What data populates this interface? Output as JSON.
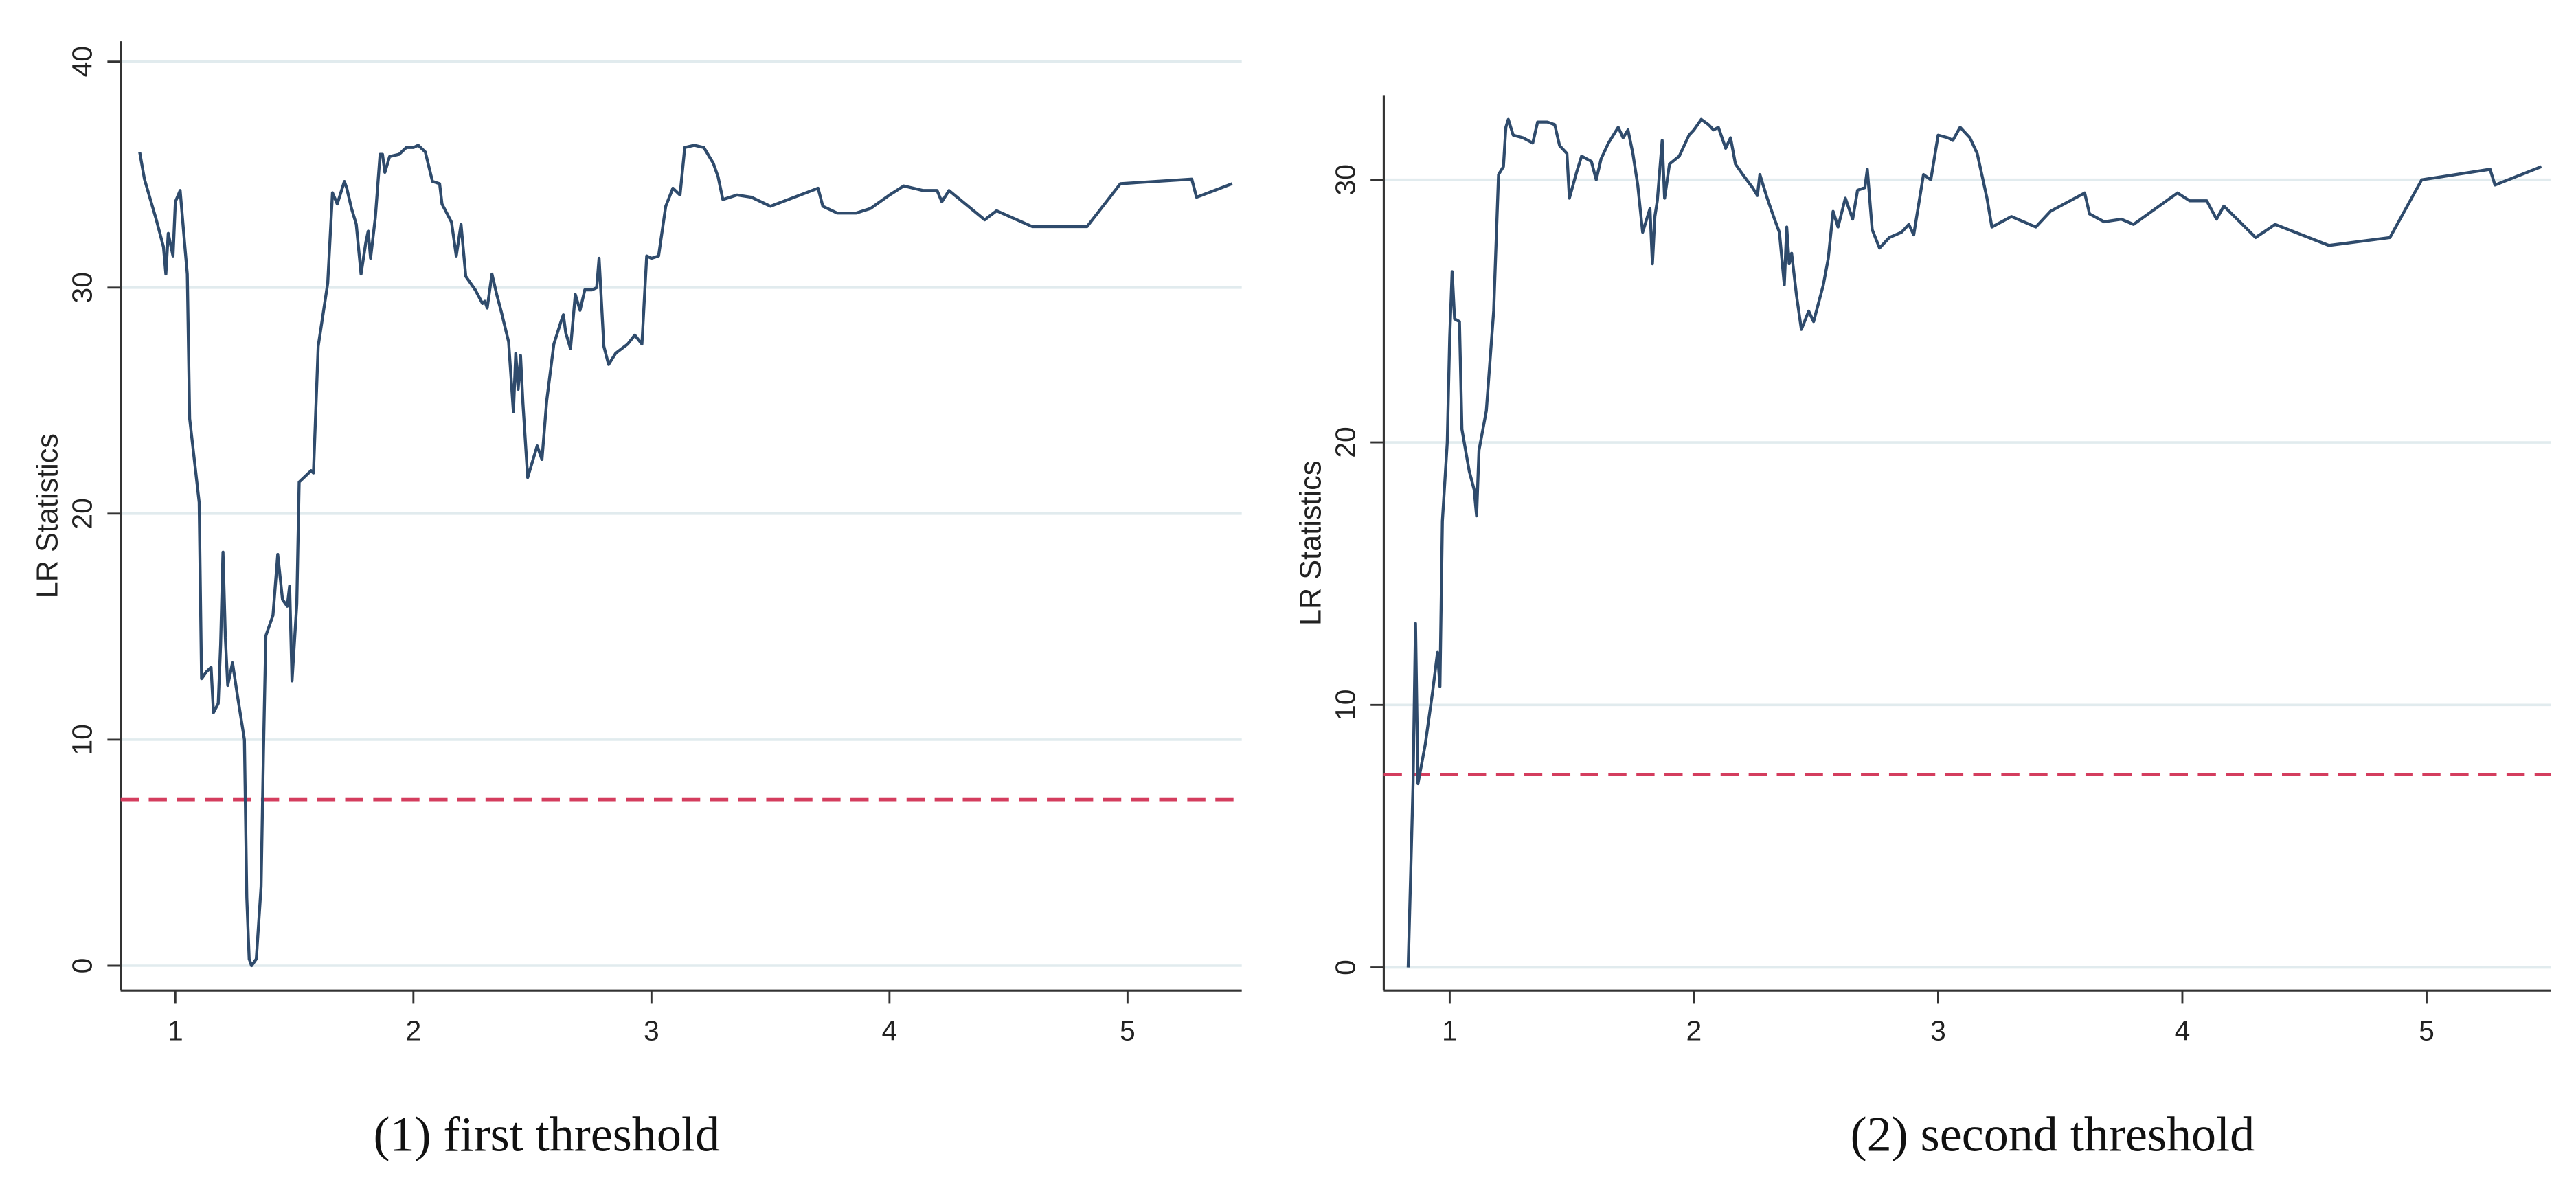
{
  "chart_data": [
    {
      "type": "line",
      "caption": "(1) first threshold",
      "ylabel": "LR Statistics",
      "color": "#2f4b6c",
      "xlim": [
        0.77,
        5.48
      ],
      "ylim": [
        -1.1,
        40.9
      ],
      "xticks": [
        1,
        2,
        3,
        4,
        5
      ],
      "yticks": [
        0,
        10,
        20,
        30,
        40
      ],
      "grid": true,
      "reference_line": {
        "value": 7.35,
        "color": "#d43d5e"
      },
      "x": [
        0.85,
        0.87,
        0.92,
        0.95,
        0.96,
        0.97,
        0.99,
        1.0,
        1.02,
        1.04,
        1.05,
        1.06,
        1.1,
        1.11,
        1.13,
        1.15,
        1.16,
        1.18,
        1.19,
        1.2,
        1.21,
        1.22,
        1.24,
        1.26,
        1.29,
        1.3,
        1.31,
        1.32,
        1.34,
        1.36,
        1.37,
        1.38,
        1.41,
        1.43,
        1.45,
        1.47,
        1.48,
        1.49,
        1.51,
        1.52,
        1.55,
        1.57,
        1.58,
        1.6,
        1.64,
        1.66,
        1.68,
        1.71,
        1.72,
        1.74,
        1.76,
        1.78,
        1.8,
        1.81,
        1.82,
        1.84,
        1.86,
        1.87,
        1.88,
        1.9,
        1.94,
        1.97,
        2.0,
        2.02,
        2.05,
        2.08,
        2.11,
        2.12,
        2.16,
        2.18,
        2.2,
        2.22,
        2.26,
        2.29,
        2.3,
        2.31,
        2.33,
        2.35,
        2.37,
        2.4,
        2.42,
        2.43,
        2.44,
        2.45,
        2.46,
        2.48,
        2.5,
        2.52,
        2.54,
        2.56,
        2.59,
        2.62,
        2.63,
        2.64,
        2.66,
        2.68,
        2.7,
        2.72,
        2.75,
        2.77,
        2.78,
        2.8,
        2.82,
        2.85,
        2.9,
        2.93,
        2.96,
        2.98,
        3.0,
        3.03,
        3.06,
        3.09,
        3.12,
        3.14,
        3.18,
        3.22,
        3.26,
        3.28,
        3.3,
        3.36,
        3.42,
        3.5,
        3.7,
        3.72,
        3.78,
        3.86,
        3.92,
        4.0,
        4.06,
        4.14,
        4.2,
        4.22,
        4.25,
        4.4,
        4.45,
        4.6,
        4.83,
        4.97,
        5.27,
        5.29,
        5.44
      ],
      "values": [
        36.0,
        34.8,
        33.0,
        31.8,
        30.6,
        32.4,
        31.4,
        33.8,
        34.3,
        31.8,
        30.6,
        24.2,
        20.5,
        12.7,
        13.0,
        13.2,
        11.2,
        11.6,
        14.2,
        18.3,
        14.5,
        12.4,
        13.4,
        12.0,
        10.0,
        3.0,
        0.3,
        0.0,
        0.3,
        3.5,
        9.5,
        14.6,
        15.5,
        18.2,
        16.2,
        15.9,
        16.8,
        12.6,
        16.0,
        21.4,
        21.7,
        21.9,
        21.8,
        27.4,
        30.2,
        34.2,
        33.7,
        34.7,
        34.4,
        33.5,
        32.8,
        30.6,
        32.0,
        32.5,
        31.3,
        33.1,
        35.9,
        35.9,
        35.1,
        35.8,
        35.9,
        36.2,
        36.2,
        36.3,
        36.0,
        34.7,
        34.6,
        33.7,
        32.9,
        31.4,
        32.8,
        30.5,
        29.9,
        29.3,
        29.4,
        29.1,
        30.6,
        29.7,
        28.9,
        27.6,
        24.5,
        27.1,
        25.5,
        27.0,
        24.9,
        21.6,
        22.3,
        23.0,
        22.4,
        25.0,
        27.5,
        28.5,
        28.8,
        28.0,
        27.3,
        29.7,
        29.0,
        29.9,
        29.9,
        30.0,
        31.3,
        27.4,
        26.6,
        27.1,
        27.5,
        27.9,
        27.5,
        31.4,
        31.3,
        31.4,
        33.6,
        34.4,
        34.1,
        36.2,
        36.3,
        36.2,
        35.5,
        34.9,
        33.9,
        34.1,
        34.0,
        33.6,
        34.4,
        33.6,
        33.3,
        33.3,
        33.5,
        34.1,
        34.5,
        34.3,
        34.3,
        33.8,
        34.3,
        33.0,
        33.4,
        32.7,
        32.7,
        34.6,
        34.8,
        34.0,
        34.6
      ]
    },
    {
      "type": "line",
      "caption": "(2) second threshold",
      "ylabel": "LR Statistics",
      "color": "#2f4b6c",
      "xlim": [
        0.73,
        5.51
      ],
      "ylim": [
        -0.88,
        33.2
      ],
      "xticks": [
        1,
        2,
        3,
        4,
        5
      ],
      "yticks": [
        0,
        10,
        20,
        30
      ],
      "grid": true,
      "reference_line": {
        "value": 7.35,
        "color": "#d43d5e"
      },
      "x": [
        0.83,
        0.85,
        0.86,
        0.87,
        0.9,
        0.93,
        0.95,
        0.96,
        0.97,
        0.99,
        1.0,
        1.01,
        1.02,
        1.04,
        1.05,
        1.08,
        1.1,
        1.11,
        1.12,
        1.15,
        1.18,
        1.2,
        1.22,
        1.23,
        1.24,
        1.26,
        1.3,
        1.34,
        1.36,
        1.4,
        1.43,
        1.45,
        1.48,
        1.49,
        1.52,
        1.54,
        1.58,
        1.6,
        1.62,
        1.65,
        1.69,
        1.71,
        1.73,
        1.75,
        1.77,
        1.79,
        1.82,
        1.83,
        1.84,
        1.85,
        1.87,
        1.88,
        1.9,
        1.94,
        1.98,
        2.0,
        2.03,
        2.06,
        2.08,
        2.1,
        2.13,
        2.15,
        2.17,
        2.2,
        2.24,
        2.26,
        2.27,
        2.3,
        2.33,
        2.35,
        2.37,
        2.38,
        2.39,
        2.4,
        2.42,
        2.44,
        2.47,
        2.49,
        2.53,
        2.55,
        2.57,
        2.59,
        2.62,
        2.65,
        2.67,
        2.7,
        2.71,
        2.73,
        2.76,
        2.8,
        2.85,
        2.88,
        2.9,
        2.94,
        2.97,
        3.0,
        3.04,
        3.06,
        3.09,
        3.13,
        3.16,
        3.2,
        3.22,
        3.3,
        3.4,
        3.46,
        3.6,
        3.62,
        3.68,
        3.75,
        3.8,
        3.98,
        4.03,
        4.1,
        4.14,
        4.17,
        4.3,
        4.38,
        4.6,
        4.85,
        4.98,
        5.26,
        5.28,
        5.47
      ],
      "values": [
        0.0,
        7.0,
        13.1,
        7.0,
        8.5,
        10.5,
        12.0,
        10.7,
        17.0,
        20.0,
        24.0,
        26.5,
        24.7,
        24.6,
        20.5,
        18.9,
        18.2,
        17.2,
        19.7,
        21.2,
        25.0,
        30.2,
        30.5,
        32.0,
        32.3,
        31.7,
        31.6,
        31.4,
        32.2,
        32.2,
        32.1,
        31.3,
        31.0,
        29.3,
        30.3,
        30.9,
        30.7,
        30.0,
        30.8,
        31.4,
        32.0,
        31.6,
        31.9,
        31.0,
        29.8,
        28.0,
        28.9,
        26.8,
        28.6,
        29.2,
        31.5,
        29.3,
        30.6,
        30.9,
        31.7,
        31.9,
        32.3,
        32.1,
        31.9,
        32.0,
        31.2,
        31.6,
        30.6,
        30.2,
        29.7,
        29.4,
        30.2,
        29.3,
        28.5,
        28.0,
        26.0,
        28.2,
        26.8,
        27.2,
        25.6,
        24.3,
        25.0,
        24.6,
        26.0,
        27.0,
        28.8,
        28.2,
        29.3,
        28.5,
        29.6,
        29.7,
        30.4,
        28.1,
        27.4,
        27.8,
        28.0,
        28.3,
        27.9,
        30.2,
        30.0,
        31.7,
        31.6,
        31.5,
        32.0,
        31.6,
        31.0,
        29.3,
        28.2,
        28.6,
        28.2,
        28.8,
        29.5,
        28.7,
        28.4,
        28.5,
        28.3,
        29.5,
        29.2,
        29.2,
        28.5,
        29.0,
        27.8,
        28.3,
        27.5,
        27.8,
        30.0,
        30.4,
        29.8,
        30.5
      ]
    }
  ]
}
